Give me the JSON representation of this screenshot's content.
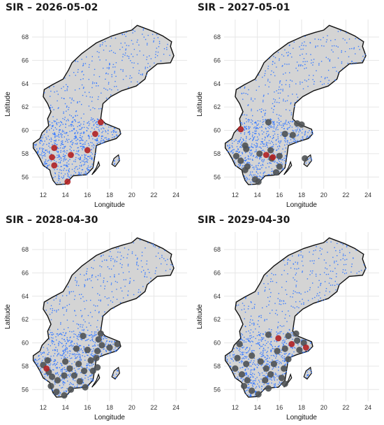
{
  "panels": [
    {
      "title": "SIR – 2026-05-02",
      "dots": [
        [
          57.3,
          12.5
        ],
        [
          57.6,
          12.9
        ],
        [
          58.3,
          12.7
        ],
        [
          58.5,
          13.2
        ],
        [
          58.4,
          12.9
        ],
        [
          57.9,
          14.4
        ],
        [
          56.9,
          12.7
        ],
        [
          57.1,
          13.0
        ],
        [
          55.6,
          14.1
        ],
        [
          58.3,
          15.9
        ],
        [
          59.6,
          16.6
        ],
        [
          60.7,
          17.1
        ],
        [
          60.6,
          17.3
        ],
        [
          58.1,
          12.6
        ],
        [
          57.5,
          14.0
        ]
      ],
      "infected": [
        [
          58.5,
          13.0
        ],
        [
          57.9,
          14.5
        ],
        [
          57.0,
          13.0
        ],
        [
          55.6,
          14.2
        ],
        [
          58.3,
          16.0
        ],
        [
          59.7,
          16.7
        ],
        [
          60.7,
          17.2
        ],
        [
          57.7,
          12.8
        ]
      ],
      "recovered": []
    },
    {
      "title": "SIR – 2027-05-01",
      "infected": [
        [
          60.1,
          12.5
        ],
        [
          57.9,
          14.8
        ],
        [
          57.7,
          15.4
        ]
      ],
      "recovered": [
        [
          58.7,
          12.9
        ],
        [
          58.4,
          13.0
        ],
        [
          57.8,
          12.1
        ],
        [
          57.4,
          12.5
        ],
        [
          56.9,
          13.1
        ],
        [
          56.6,
          12.9
        ],
        [
          55.8,
          13.8
        ],
        [
          55.6,
          14.1
        ],
        [
          58.0,
          14.2
        ],
        [
          58.3,
          15.2
        ],
        [
          57.6,
          15.3
        ],
        [
          57.8,
          16.0
        ],
        [
          56.9,
          16.0
        ],
        [
          56.4,
          15.7
        ],
        [
          60.7,
          15.0
        ],
        [
          59.7,
          16.5
        ],
        [
          60.6,
          17.6
        ],
        [
          59.6,
          17.2
        ],
        [
          60.5,
          18.0
        ],
        [
          57.6,
          18.3
        ]
      ]
    },
    {
      "title": "SIR – 2028-04-30",
      "infected": [
        [
          57.8,
          12.3
        ]
      ],
      "recovered": [
        [
          58.5,
          12.4
        ],
        [
          58.1,
          12.0
        ],
        [
          57.5,
          12.5
        ],
        [
          57.1,
          12.8
        ],
        [
          56.8,
          13.3
        ],
        [
          56.3,
          12.7
        ],
        [
          55.8,
          13.2
        ],
        [
          55.5,
          13.9
        ],
        [
          56.0,
          14.5
        ],
        [
          57.2,
          13.9
        ],
        [
          57.8,
          14.4
        ],
        [
          57.2,
          14.8
        ],
        [
          56.7,
          15.3
        ],
        [
          56.2,
          15.8
        ],
        [
          57.6,
          15.7
        ],
        [
          58.2,
          15.2
        ],
        [
          58.5,
          16.3
        ],
        [
          57.6,
          16.5
        ],
        [
          58.7,
          16.8
        ],
        [
          59.5,
          15.0
        ],
        [
          59.4,
          16.0
        ],
        [
          60.6,
          15.6
        ],
        [
          60.8,
          17.2
        ],
        [
          59.8,
          17.3
        ],
        [
          59.6,
          18.0
        ],
        [
          59.9,
          18.7
        ],
        [
          60.3,
          17.0
        ],
        [
          59.3,
          16.9
        ],
        [
          58.4,
          14.0
        ],
        [
          57.9,
          16.9
        ]
      ]
    },
    {
      "title": "SIR – 2029-04-30",
      "infected": [
        [
          60.4,
          15.9
        ],
        [
          59.6,
          18.4
        ],
        [
          59.9,
          17.1
        ]
      ],
      "recovered": [
        [
          59.9,
          12.4
        ],
        [
          58.7,
          12.2
        ],
        [
          58.2,
          13.0
        ],
        [
          57.8,
          12.0
        ],
        [
          57.3,
          12.6
        ],
        [
          56.8,
          13.1
        ],
        [
          56.3,
          12.8
        ],
        [
          55.9,
          13.5
        ],
        [
          55.6,
          14.1
        ],
        [
          56.1,
          15.0
        ],
        [
          56.8,
          14.7
        ],
        [
          57.3,
          15.2
        ],
        [
          57.0,
          16.2
        ],
        [
          56.5,
          16.5
        ],
        [
          57.8,
          16.4
        ],
        [
          58.2,
          15.5
        ],
        [
          58.4,
          14.3
        ],
        [
          57.8,
          14.8
        ],
        [
          58.6,
          16.8
        ],
        [
          59.3,
          15.8
        ],
        [
          59.5,
          16.5
        ],
        [
          60.7,
          15.0
        ],
        [
          60.6,
          16.8
        ],
        [
          60.2,
          17.6
        ],
        [
          60.0,
          18.2
        ],
        [
          59.4,
          17.8
        ],
        [
          60.8,
          17.5
        ],
        [
          58.9,
          13.5
        ]
      ]
    }
  ],
  "axes": {
    "xlabel": "Longitude",
    "ylabel": "Latitude",
    "xticks": [
      "12",
      "14",
      "16",
      "18",
      "20",
      "22",
      "24"
    ],
    "yticks": [
      "56",
      "58",
      "60",
      "62",
      "64",
      "66",
      "68"
    ],
    "xlim": [
      11,
      25
    ],
    "ylim": [
      55,
      69.5
    ]
  },
  "colors": {
    "land": "#d4d4d4",
    "border": "#111111",
    "population": "#3a7cff",
    "infected": "#b22222",
    "recovered": "#4f5254",
    "grid": "#e6e6e6"
  }
}
